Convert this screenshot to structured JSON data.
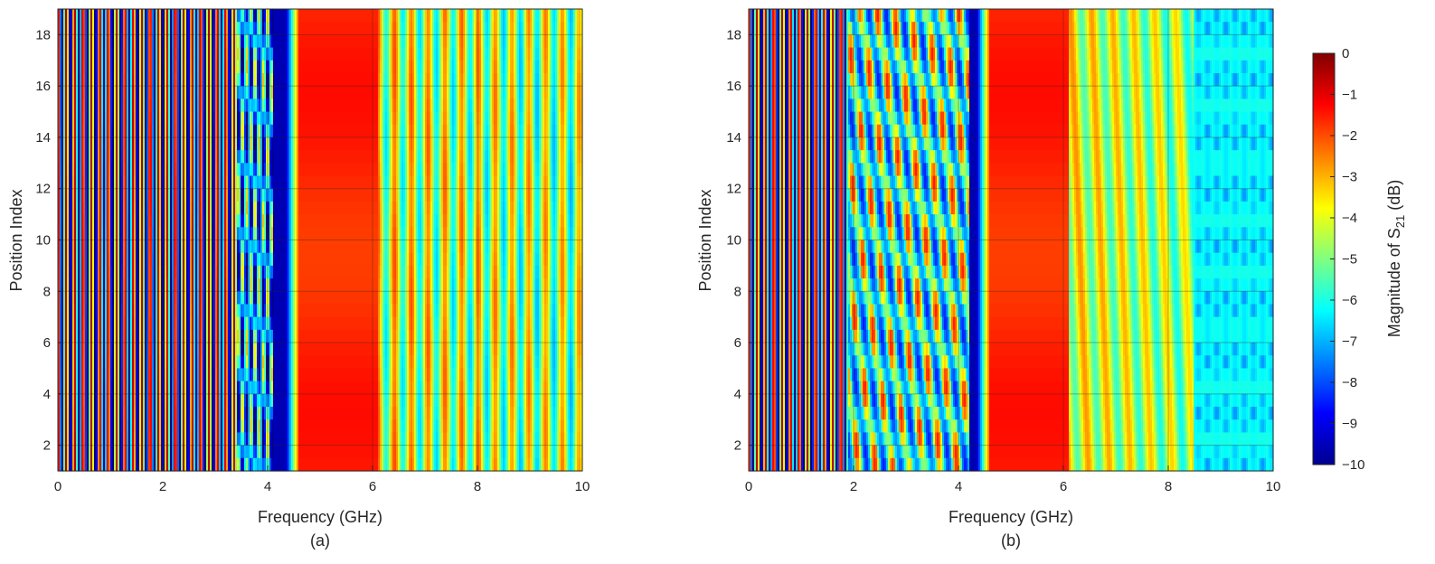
{
  "chart_data": [
    {
      "type": "heatmap",
      "caption": "(a)",
      "xlabel": "Frequency (GHz)",
      "ylabel": "Position Index",
      "xlim": [
        0,
        10
      ],
      "ylim": [
        1,
        19
      ],
      "xticks": [
        "0",
        "2",
        "4",
        "6",
        "8",
        "10"
      ],
      "yticks": [
        "2",
        "4",
        "6",
        "8",
        "10",
        "12",
        "14",
        "16",
        "18"
      ],
      "grid": true,
      "regions": [
        {
          "x_range": [
            0,
            3.4
          ],
          "description": "vertical oscillation fringes, spacing ~0.16 GHz",
          "value_range_db": [
            -10,
            -0.5
          ]
        },
        {
          "x_range": [
            3.4,
            4.1
          ],
          "description": "mixed fringes",
          "value_range_db": [
            -10,
            -3
          ]
        },
        {
          "x_range": [
            4.1,
            4.3
          ],
          "value_db": -9.5
        },
        {
          "x_range": [
            4.6,
            6.1
          ],
          "value_db": -1.6
        },
        {
          "x_range": [
            6.1,
            10
          ],
          "description": "vertical fringes",
          "value_range_db": [
            -7,
            -2.5
          ]
        }
      ]
    },
    {
      "type": "heatmap",
      "caption": "(b)",
      "xlabel": "Frequency (GHz)",
      "ylabel": "Position Index",
      "xlim": [
        0,
        10
      ],
      "ylim": [
        1,
        19
      ],
      "xticks": [
        "0",
        "2",
        "4",
        "6",
        "8",
        "10"
      ],
      "yticks": [
        "2",
        "4",
        "6",
        "8",
        "10",
        "12",
        "14",
        "16",
        "18"
      ],
      "grid": true,
      "regions": [
        {
          "x_range": [
            0,
            1.9
          ],
          "description": "vertical fringes",
          "value_range_db": [
            -10,
            -0.5
          ]
        },
        {
          "x_range": [
            1.9,
            4.2
          ],
          "description": "diagonal interference pattern varying with position",
          "value_range_db": [
            -10,
            -1.5
          ]
        },
        {
          "x_range": [
            4.2,
            4.3
          ],
          "value_db": -9.5
        },
        {
          "x_range": [
            4.6,
            6.1
          ],
          "value_db": -1.6
        },
        {
          "x_range": [
            6.1,
            8.5
          ],
          "description": "weak fringes",
          "value_range_db": [
            -6,
            -3
          ]
        },
        {
          "x_range": [
            8.5,
            10
          ],
          "value_db": -6
        }
      ]
    }
  ],
  "colorbar": {
    "label_prefix": "Magnitude of S",
    "label_sub": "21",
    "label_suffix": " (dB)",
    "range": [
      -10,
      0
    ],
    "ticks": [
      "0",
      "−1",
      "−2",
      "−3",
      "−4",
      "−5",
      "−6",
      "−7",
      "−8",
      "−9",
      "−10"
    ],
    "colormap": "jet"
  }
}
